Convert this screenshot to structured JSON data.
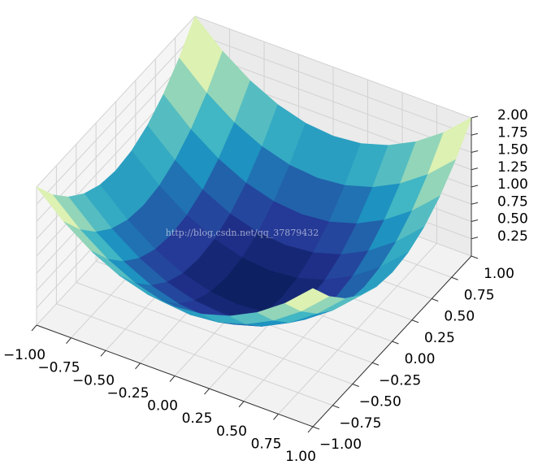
{
  "chart_data": {
    "type": "surface",
    "x": [
      -1,
      -0.8,
      -0.6,
      -0.4,
      -0.2,
      0,
      0.2,
      0.4,
      0.6,
      0.8,
      1
    ],
    "y": [
      -1,
      -0.8,
      -0.6,
      -0.4,
      -0.2,
      0,
      0.2,
      0.4,
      0.6,
      0.8,
      1
    ],
    "z": [
      [
        2,
        1.64,
        1.36,
        1.16,
        1.04,
        1,
        1.04,
        1.16,
        1.36,
        1.64,
        2
      ],
      [
        1.64,
        1.28,
        1,
        0.8,
        0.68,
        0.64,
        0.68,
        0.8,
        1,
        1.28,
        1.64
      ],
      [
        1.36,
        1,
        0.72,
        0.52,
        0.4,
        0.36,
        0.4,
        0.52,
        0.72,
        1,
        1.36
      ],
      [
        1.16,
        0.8,
        0.52,
        0.32,
        0.2,
        0.16,
        0.2,
        0.32,
        0.52,
        0.8,
        1.16
      ],
      [
        1.04,
        0.68,
        0.4,
        0.2,
        0.08,
        0.04,
        0.08,
        0.2,
        0.4,
        0.68,
        1.04
      ],
      [
        1,
        0.64,
        0.36,
        0.16,
        0.04,
        0,
        0.04,
        0.16,
        0.36,
        0.64,
        1
      ],
      [
        1.04,
        0.68,
        0.4,
        0.2,
        0.08,
        0.04,
        0.08,
        0.2,
        0.4,
        0.68,
        1.04
      ],
      [
        1.16,
        0.8,
        0.52,
        0.32,
        0.2,
        0.16,
        0.2,
        0.32,
        0.52,
        0.8,
        1.16
      ],
      [
        1.36,
        1,
        0.72,
        0.52,
        0.4,
        0.36,
        0.4,
        0.52,
        0.72,
        1,
        1.36
      ],
      [
        1.64,
        1.28,
        1,
        0.8,
        0.68,
        0.64,
        0.68,
        0.8,
        1,
        1.28,
        1.64
      ],
      [
        2,
        1.64,
        1.36,
        1.16,
        1.04,
        1,
        1.04,
        1.16,
        1.36,
        1.64,
        2
      ]
    ],
    "xlim": [
      -1,
      1
    ],
    "ylim": [
      -1,
      1
    ],
    "zlim": [
      0,
      2
    ],
    "xticks": [
      {
        "value": -1,
        "label": "−1.00"
      },
      {
        "value": -0.75,
        "label": "−0.75"
      },
      {
        "value": -0.5,
        "label": "−0.50"
      },
      {
        "value": -0.25,
        "label": "−0.25"
      },
      {
        "value": 0,
        "label": "0.00"
      },
      {
        "value": 0.25,
        "label": "0.25"
      },
      {
        "value": 0.5,
        "label": "0.50"
      },
      {
        "value": 0.75,
        "label": "0.75"
      },
      {
        "value": 1,
        "label": "1.00"
      }
    ],
    "yticks": [
      {
        "value": -1,
        "label": "−1.00"
      },
      {
        "value": -0.75,
        "label": "−0.75"
      },
      {
        "value": -0.5,
        "label": "−0.50"
      },
      {
        "value": -0.25,
        "label": "−0.25"
      },
      {
        "value": 0,
        "label": "0.00"
      },
      {
        "value": 0.25,
        "label": "0.25"
      },
      {
        "value": 0.5,
        "label": "0.50"
      },
      {
        "value": 0.75,
        "label": "0.75"
      },
      {
        "value": 1,
        "label": "1.00"
      }
    ],
    "zticks": [
      {
        "value": 0.25,
        "label": "0.25"
      },
      {
        "value": 0.5,
        "label": "0.50"
      },
      {
        "value": 0.75,
        "label": "0.75"
      },
      {
        "value": 1,
        "label": "1.00"
      },
      {
        "value": 1.25,
        "label": "1.25"
      },
      {
        "value": 1.5,
        "label": "1.50"
      },
      {
        "value": 1.75,
        "label": "1.75"
      },
      {
        "value": 2,
        "label": "2.00"
      }
    ],
    "colormap": "YlGnBu_r",
    "grid": true,
    "watermark": "http://blog.csdn.net/qq_37879432"
  }
}
